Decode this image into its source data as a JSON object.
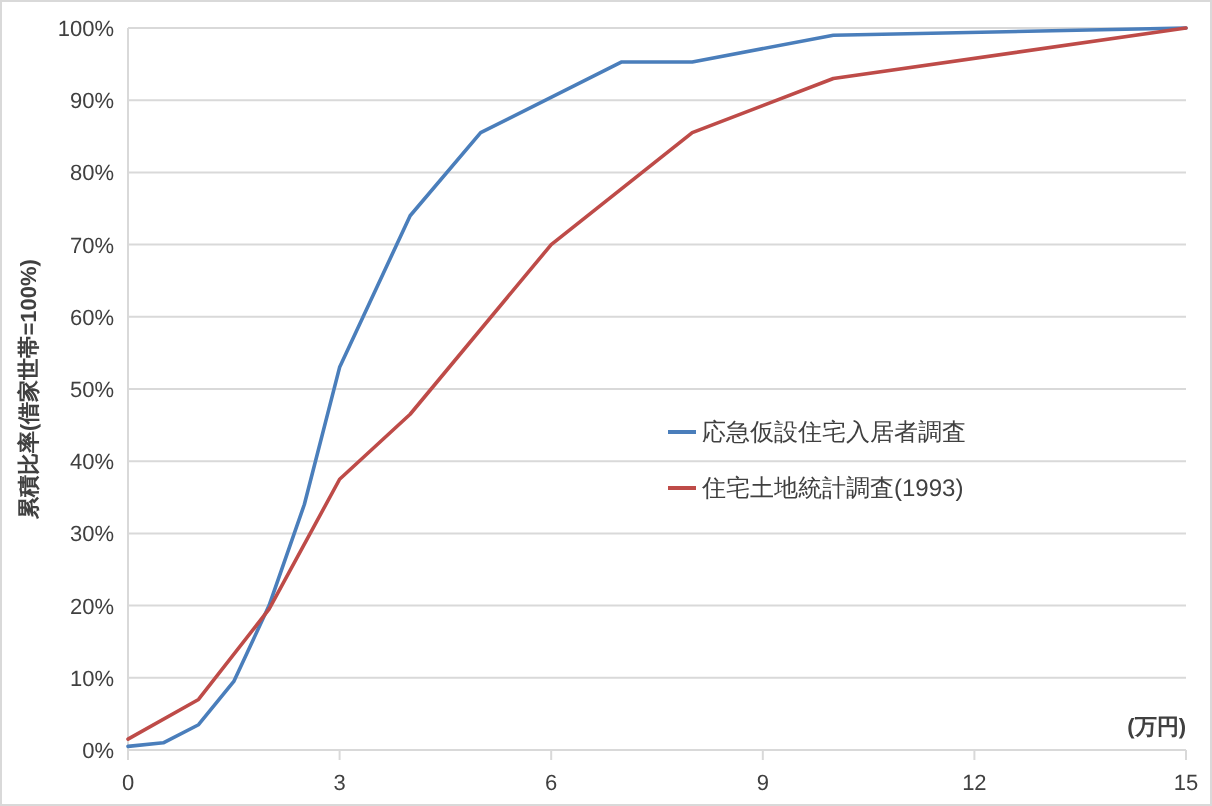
{
  "chart_data": {
    "type": "line",
    "ylabel": "累積比率(借家世帯=100%)",
    "xlabel": "(万円)",
    "xlim": [
      0,
      15
    ],
    "xticks": [
      0,
      3,
      6,
      9,
      12,
      15
    ],
    "ylim": [
      0,
      100
    ],
    "yticks": [
      {
        "value": 0,
        "label": "0%"
      },
      {
        "value": 10,
        "label": "10%"
      },
      {
        "value": 20,
        "label": "20%"
      },
      {
        "value": 30,
        "label": "30%"
      },
      {
        "value": 40,
        "label": "40%"
      },
      {
        "value": 50,
        "label": "50%"
      },
      {
        "value": 60,
        "label": "60%"
      },
      {
        "value": 70,
        "label": "70%"
      },
      {
        "value": 80,
        "label": "80%"
      },
      {
        "value": 90,
        "label": "90%"
      },
      {
        "value": 100,
        "label": "100%"
      }
    ],
    "grid": "y",
    "legend": "right",
    "marker": "none",
    "line_style": "solid",
    "series": [
      {
        "name": "応急仮設住宅入居者調査",
        "color": "#4a7ebb",
        "x": [
          0,
          0.5,
          1,
          1.5,
          2,
          2.5,
          3,
          4,
          5,
          7,
          8,
          10,
          15
        ],
        "values": [
          0.5,
          1,
          3.5,
          9.5,
          20,
          34,
          53,
          74,
          85.5,
          95.3,
          95.3,
          99,
          100
        ]
      },
      {
        "name": "住宅土地統計調査(1993)",
        "color": "#be4b48",
        "x": [
          0,
          1,
          2,
          3,
          4,
          6,
          8,
          10,
          15
        ],
        "values": [
          1.5,
          7,
          19.5,
          37.5,
          46.5,
          70,
          85.5,
          93,
          100
        ]
      }
    ]
  }
}
